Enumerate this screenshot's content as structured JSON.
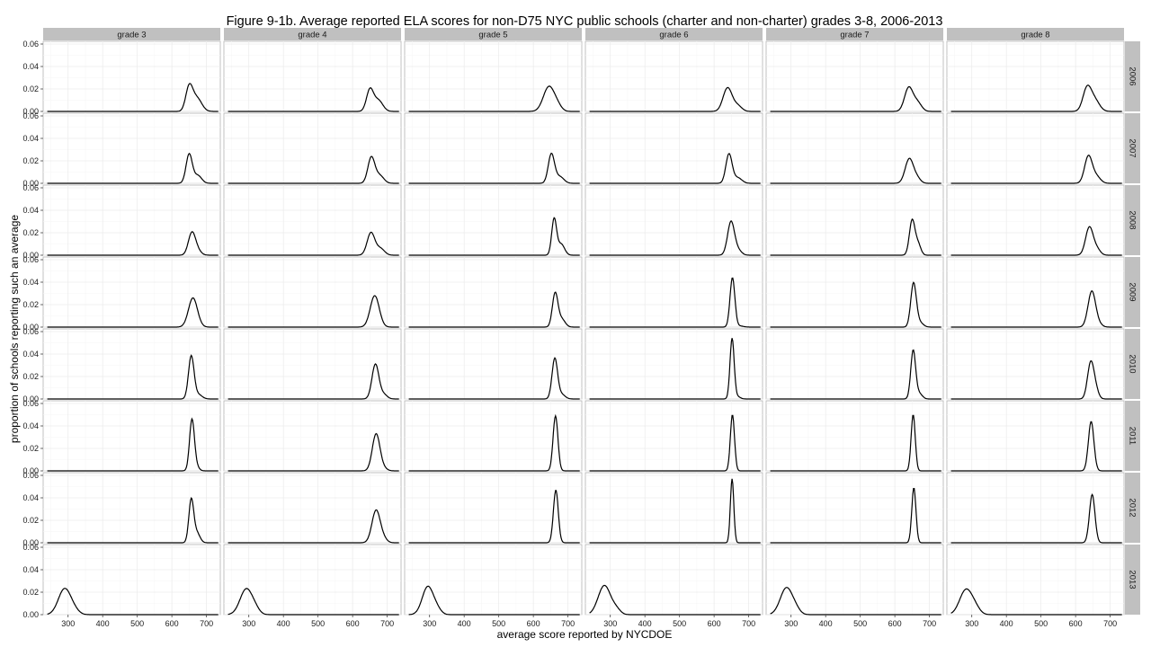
{
  "chart_data": {
    "type": "line",
    "title": "Figure 9-1b. Average reported ELA scores for non-D75 NYC public schools (charter and non-charter) grades 3-8, 2006-2013",
    "xlabel": "average score reported by NYCDOE",
    "ylabel": "proportion of schools reporting such an average",
    "xlim": [
      228,
      740
    ],
    "ylim": [
      0,
      0.06
    ],
    "x_ticks": [
      300,
      400,
      500,
      600,
      700
    ],
    "y_ticks": [
      "0.00",
      "0.02",
      "0.04",
      "0.06"
    ],
    "grid": true,
    "columns": [
      "grade 3",
      "grade 4",
      "grade 5",
      "grade 6",
      "grade 7",
      "grade 8"
    ],
    "rows": [
      "2006",
      "2007",
      "2008",
      "2009",
      "2010",
      "2011",
      "2012",
      "2013"
    ],
    "panel_x_range": [
      240,
      735
    ],
    "colors": {
      "line": "#000000",
      "strip": "#c0c0c0",
      "panel_border": "#b3b3b3",
      "grid_major": "#ebebeb",
      "grid_minor": "#f5f5f5"
    },
    "curves": [
      [
        {
          "peaks": [
            [
              650,
              0.021,
              10
            ],
            [
              672,
              0.012,
              14
            ]
          ]
        },
        {
          "peaks": [
            [
              650,
              0.026,
              9
            ],
            [
              675,
              0.007,
              11
            ]
          ]
        },
        {
          "peaks": [
            [
              657,
              0.017,
              10
            ],
            [
              669,
              0.006,
              12
            ]
          ],
          "spread_note": "wide"
        },
        {
          "peaks": [
            [
              661,
              0.026,
              13
            ]
          ]
        },
        {
          "peaks": [
            [
              656,
              0.038,
              8
            ],
            [
              676,
              0.004,
              11
            ]
          ]
        },
        {
          "peaks": [
            [
              658,
              0.045,
              7
            ],
            [
              670,
              0.004,
              8
            ]
          ]
        },
        {
          "peaks": [
            [
              656,
              0.038,
              7
            ],
            [
              672,
              0.009,
              9
            ]
          ]
        },
        {
          "peaks": [
            [
              290,
              0.023,
              18
            ],
            [
              318,
              0.003,
              14
            ]
          ]
        }
      ],
      [
        {
          "peaks": [
            [
              650,
              0.019,
              10
            ],
            [
              674,
              0.01,
              13
            ]
          ]
        },
        {
          "peaks": [
            [
              654,
              0.023,
              10
            ],
            [
              678,
              0.007,
              12
            ]
          ]
        },
        {
          "peaks": [
            [
              653,
              0.02,
              11
            ],
            [
              680,
              0.006,
              12
            ]
          ]
        },
        {
          "peaks": [
            [
              664,
              0.028,
              13
            ]
          ]
        },
        {
          "peaks": [
            [
              666,
              0.031,
              10
            ],
            [
              690,
              0.004,
              10
            ]
          ]
        },
        {
          "peaks": [
            [
              668,
              0.033,
              11
            ],
            [
              690,
              0.002,
              10
            ]
          ]
        },
        {
          "peaks": [
            [
              668,
              0.029,
              12
            ],
            [
              690,
              0.003,
              10
            ]
          ]
        },
        {
          "peaks": [
            [
              293,
              0.023,
              18
            ],
            [
              320,
              0.003,
              12
            ]
          ]
        }
      ],
      [
        {
          "peaks": [
            [
              645,
              0.022,
              16
            ],
            [
              670,
              0.004,
              12
            ]
          ]
        },
        {
          "peaks": [
            [
              652,
              0.026,
              9
            ],
            [
              676,
              0.006,
              12
            ]
          ]
        },
        {
          "peaks": [
            [
              660,
              0.032,
              7
            ],
            [
              680,
              0.01,
              10
            ]
          ]
        },
        {
          "peaks": [
            [
              663,
              0.03,
              8
            ],
            [
              682,
              0.007,
              10
            ]
          ]
        },
        {
          "peaks": [
            [
              662,
              0.036,
              8
            ],
            [
              682,
              0.004,
              10
            ]
          ]
        },
        {
          "peaks": [
            [
              664,
              0.049,
              7
            ]
          ]
        },
        {
          "peaks": [
            [
              665,
              0.047,
              7
            ]
          ]
        },
        {
          "peaks": [
            [
              295,
              0.025,
              16
            ],
            [
              322,
              0.004,
              12
            ]
          ]
        }
      ],
      [
        {
          "peaks": [
            [
              639,
              0.021,
              13
            ],
            [
              668,
              0.005,
              12
            ]
          ]
        },
        {
          "peaks": [
            [
              643,
              0.026,
              9
            ],
            [
              668,
              0.005,
              12
            ]
          ]
        },
        {
          "peaks": [
            [
              649,
              0.03,
              10
            ],
            [
              670,
              0.004,
              10
            ]
          ]
        },
        {
          "peaks": [
            [
              653,
              0.044,
              7
            ],
            [
              675,
              0.001,
              10
            ]
          ]
        },
        {
          "peaks": [
            [
              652,
              0.054,
              6
            ],
            [
              668,
              0.002,
              8
            ]
          ]
        },
        {
          "peaks": [
            [
              653,
              0.05,
              6
            ]
          ]
        },
        {
          "peaks": [
            [
              652,
              0.057,
              5
            ]
          ]
        },
        {
          "peaks": [
            [
              283,
              0.026,
              18
            ],
            [
              318,
              0.004,
              12
            ]
          ]
        }
      ],
      [
        {
          "peaks": [
            [
              640,
              0.021,
              12
            ],
            [
              665,
              0.008,
              12
            ]
          ]
        },
        {
          "peaks": [
            [
              642,
              0.022,
              12
            ],
            [
              665,
              0.004,
              10
            ]
          ]
        },
        {
          "peaks": [
            [
              650,
              0.031,
              8
            ],
            [
              667,
              0.01,
              8
            ]
          ]
        },
        {
          "peaks": [
            [
              654,
              0.039,
              8
            ],
            [
              672,
              0.004,
              10
            ]
          ]
        },
        {
          "peaks": [
            [
              653,
              0.043,
              7
            ],
            [
              670,
              0.005,
              9
            ]
          ]
        },
        {
          "peaks": [
            [
              653,
              0.05,
              6
            ]
          ]
        },
        {
          "peaks": [
            [
              655,
              0.049,
              6
            ]
          ]
        },
        {
          "peaks": [
            [
              287,
              0.024,
              18
            ],
            [
              315,
              0.003,
              12
            ]
          ]
        }
      ],
      [
        {
          "peaks": [
            [
              633,
              0.02,
              12
            ],
            [
              655,
              0.01,
              14
            ]
          ]
        },
        {
          "peaks": [
            [
              637,
              0.024,
              11
            ],
            [
              660,
              0.006,
              12
            ]
          ]
        },
        {
          "peaks": [
            [
              640,
              0.025,
              11
            ],
            [
              662,
              0.005,
              10
            ]
          ]
        },
        {
          "peaks": [
            [
              647,
              0.032,
              11
            ],
            [
              668,
              0.002,
              10
            ]
          ]
        },
        {
          "peaks": [
            [
              643,
              0.03,
              9
            ],
            [
              656,
              0.01,
              9
            ]
          ]
        },
        {
          "peaks": [
            [
              645,
              0.044,
              8
            ]
          ]
        },
        {
          "peaks": [
            [
              648,
              0.043,
              8
            ]
          ]
        },
        {
          "peaks": [
            [
              283,
              0.022,
              18
            ],
            [
              310,
              0.005,
              14
            ]
          ]
        }
      ]
    ]
  }
}
